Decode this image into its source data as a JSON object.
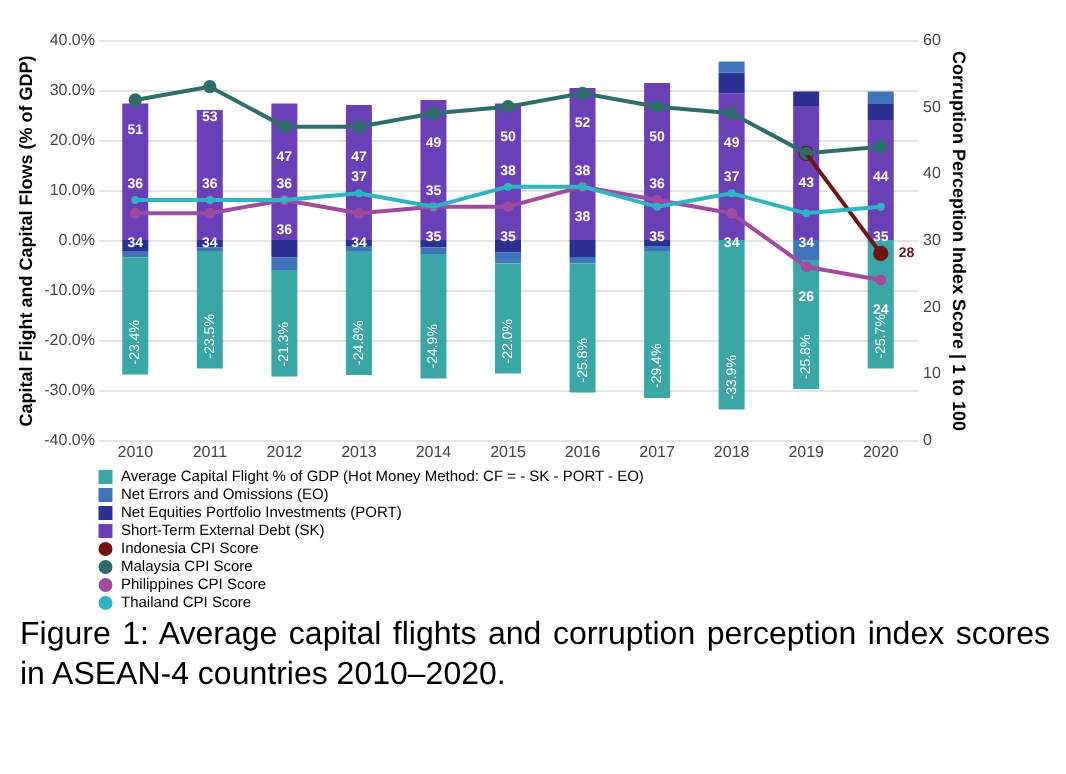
{
  "chart_data": {
    "type": "bar",
    "stacked": true,
    "ylabel": "Capital Flight and Capital Flows (% of GDP)",
    "y2label": "Corruption Perception Index Score | 1 to 100",
    "categories": [
      "2010",
      "2011",
      "2012",
      "2013",
      "2014",
      "2015",
      "2016",
      "2017",
      "2018",
      "2019",
      "2020"
    ],
    "series": [
      {
        "name": "Short-Term External Debt (SK)",
        "type": "bar",
        "color": "#6b3fb5",
        "values": [
          27.3,
          26.0,
          27.3,
          27.0,
          28.0,
          27.3,
          30.4,
          31.4,
          29.3,
          26.8,
          24.0
        ]
      },
      {
        "name": "Net Equities Portfolio Investments (PORT)",
        "type": "bar",
        "color": "#2b2f8f",
        "values": [
          -2.2,
          -1.5,
          -3.5,
          -1.2,
          -1.5,
          -2.5,
          -3.4,
          -1.2,
          4.2,
          2.9,
          3.2
        ]
      },
      {
        "name": "Net Errors and Omissions (EO)",
        "type": "bar",
        "color": "#3f74b8",
        "values": [
          -1.3,
          -0.7,
          -2.5,
          -1.0,
          -1.3,
          -2.2,
          -1.3,
          -1.0,
          2.2,
          -4.0,
          2.5
        ]
      },
      {
        "name": "Average Capital Flight % of GDP (Hot Money Method: CF = - SK - PORT - EO)",
        "type": "bar",
        "color": "#3aa6a8",
        "values": [
          -23.4,
          -23.5,
          -21.3,
          -24.8,
          -24.9,
          -22.0,
          -25.8,
          -29.4,
          -33.9,
          -25.8,
          -25.7
        ],
        "value_labels": [
          "-23.4%",
          "-23.5%",
          "-21.3%",
          "-24.8%",
          "-24.9%",
          "-22.0%",
          "-25.8%",
          "-29.4%",
          "-33.9%",
          "-25.8%",
          "-25.7%"
        ]
      },
      {
        "name": "Indonesia CPI Score",
        "type": "line",
        "axis": "y2",
        "color": "#6e1414",
        "values": [
          null,
          null,
          null,
          null,
          null,
          null,
          null,
          null,
          null,
          43,
          28
        ],
        "value_labels": [
          null,
          null,
          null,
          null,
          null,
          null,
          null,
          null,
          null,
          null,
          "28"
        ]
      },
      {
        "name": "Malaysia CPI Score",
        "type": "line",
        "axis": "y2",
        "color": "#2e6e6a",
        "values": [
          51,
          53,
          47,
          47,
          49,
          50,
          52,
          50,
          49,
          43,
          44
        ],
        "value_labels": [
          "51",
          "53",
          "47",
          "47",
          "49",
          "50",
          "52",
          "50",
          "49",
          "43",
          "44"
        ]
      },
      {
        "name": "Philippines CPI Score",
        "type": "line",
        "axis": "y2",
        "color": "#a04aa0",
        "values": [
          34,
          34,
          36,
          34,
          35,
          35,
          38,
          36,
          34,
          26,
          24
        ],
        "value_labels": [
          "34",
          "34",
          "36",
          "34",
          "35",
          "35",
          "38",
          "36",
          "34",
          "26",
          "24"
        ]
      },
      {
        "name": "Thailand CPI Score",
        "type": "line",
        "axis": "y2",
        "color": "#2fb4c4",
        "values": [
          36,
          36,
          36,
          37,
          35,
          38,
          38,
          35,
          37,
          34,
          35
        ],
        "value_labels": [
          "36",
          "36",
          "36",
          "37",
          "35",
          "38",
          "38",
          "35",
          "37",
          "34",
          "35"
        ]
      }
    ],
    "ylim": [
      -40,
      40
    ],
    "yticks": [
      {
        "value": -40,
        "label": "-40.0%"
      },
      {
        "value": -30,
        "label": "-30.0%"
      },
      {
        "value": -20,
        "label": "-20.0%"
      },
      {
        "value": -10,
        "label": "-10.0%"
      },
      {
        "value": 0,
        "label": "0.0%"
      },
      {
        "value": 10,
        "label": "10.0%"
      },
      {
        "value": 20,
        "label": "20.0%"
      },
      {
        "value": 30,
        "label": "30.0%"
      },
      {
        "value": 40,
        "label": "40.0%"
      }
    ],
    "y2lim": [
      0,
      60
    ],
    "y2ticks": [
      0,
      10,
      20,
      30,
      40,
      50,
      60
    ],
    "grid": "y",
    "legend": "bottom",
    "marker": "circle",
    "annotations": [
      "Figure 1: Average capital flights and corruption perception index scores in ASEAN-4 countries 2010–2020."
    ]
  }
}
